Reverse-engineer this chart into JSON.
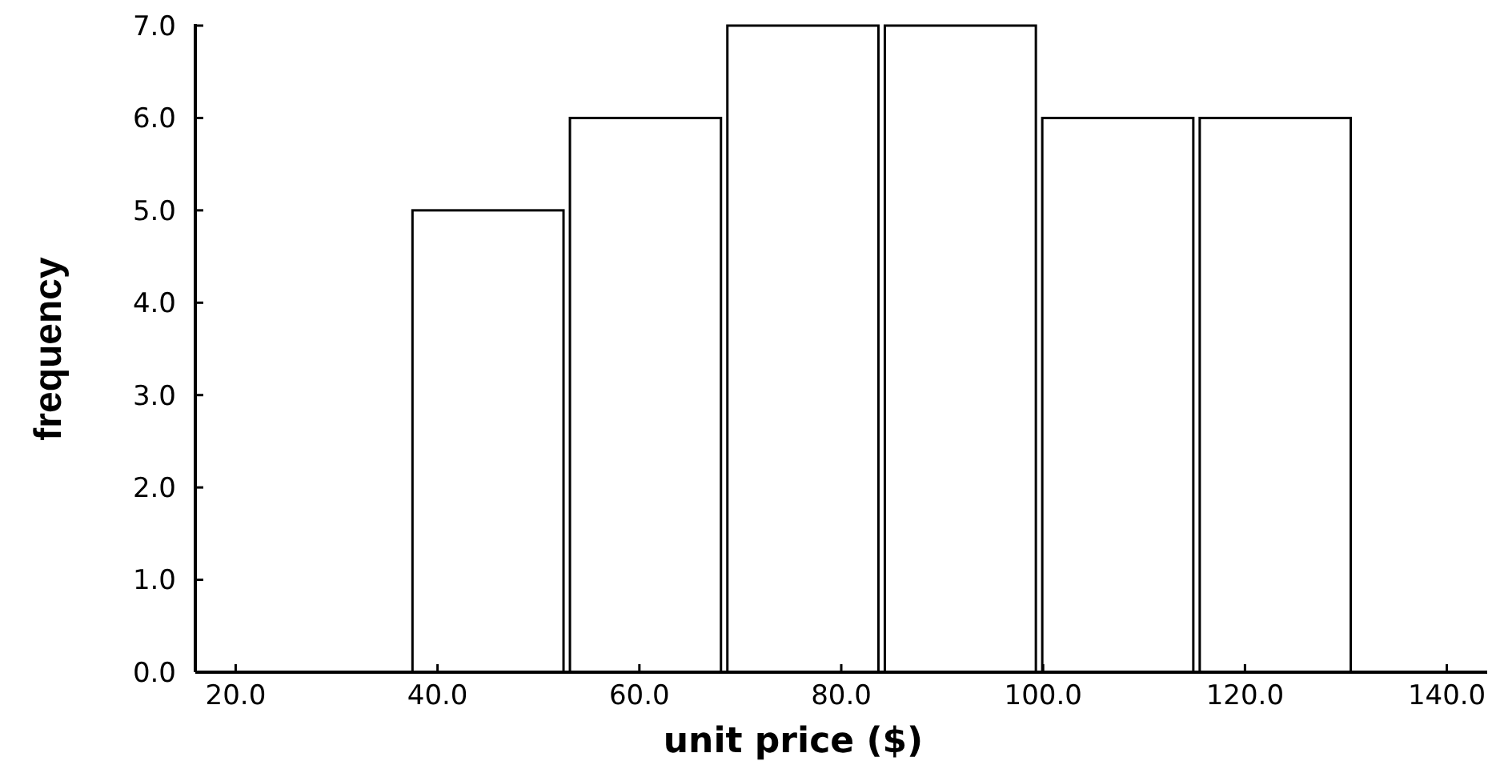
{
  "chart_data": {
    "type": "histogram",
    "xlabel": "unit price ($)",
    "ylabel": "frequency",
    "bins": [
      37.2,
      52.8,
      68.4,
      84,
      99.6,
      115.2,
      130.8
    ],
    "values": [
      5,
      6,
      7,
      7,
      6,
      6
    ],
    "color": "#ffffff",
    "xlim": [
      16,
      144
    ],
    "xticks": [
      {
        "value": 20,
        "label": "20.0"
      },
      {
        "value": 40,
        "label": "40.0"
      },
      {
        "value": 60,
        "label": "60.0"
      },
      {
        "value": 80,
        "label": "80.0"
      },
      {
        "value": 100,
        "label": "100.0"
      },
      {
        "value": 120,
        "label": "120.0"
      },
      {
        "value": 140,
        "label": "140.0"
      }
    ],
    "ylim": [
      0,
      7
    ],
    "yticks": [
      {
        "value": 0,
        "label": "0.0"
      },
      {
        "value": 1,
        "label": "1.0"
      },
      {
        "value": 2,
        "label": "2.0"
      },
      {
        "value": 3,
        "label": "3.0"
      },
      {
        "value": 4,
        "label": "4.0"
      },
      {
        "value": 5,
        "label": "5.0"
      },
      {
        "value": 6,
        "label": "6.0"
      },
      {
        "value": 7,
        "label": "7.0"
      }
    ]
  }
}
